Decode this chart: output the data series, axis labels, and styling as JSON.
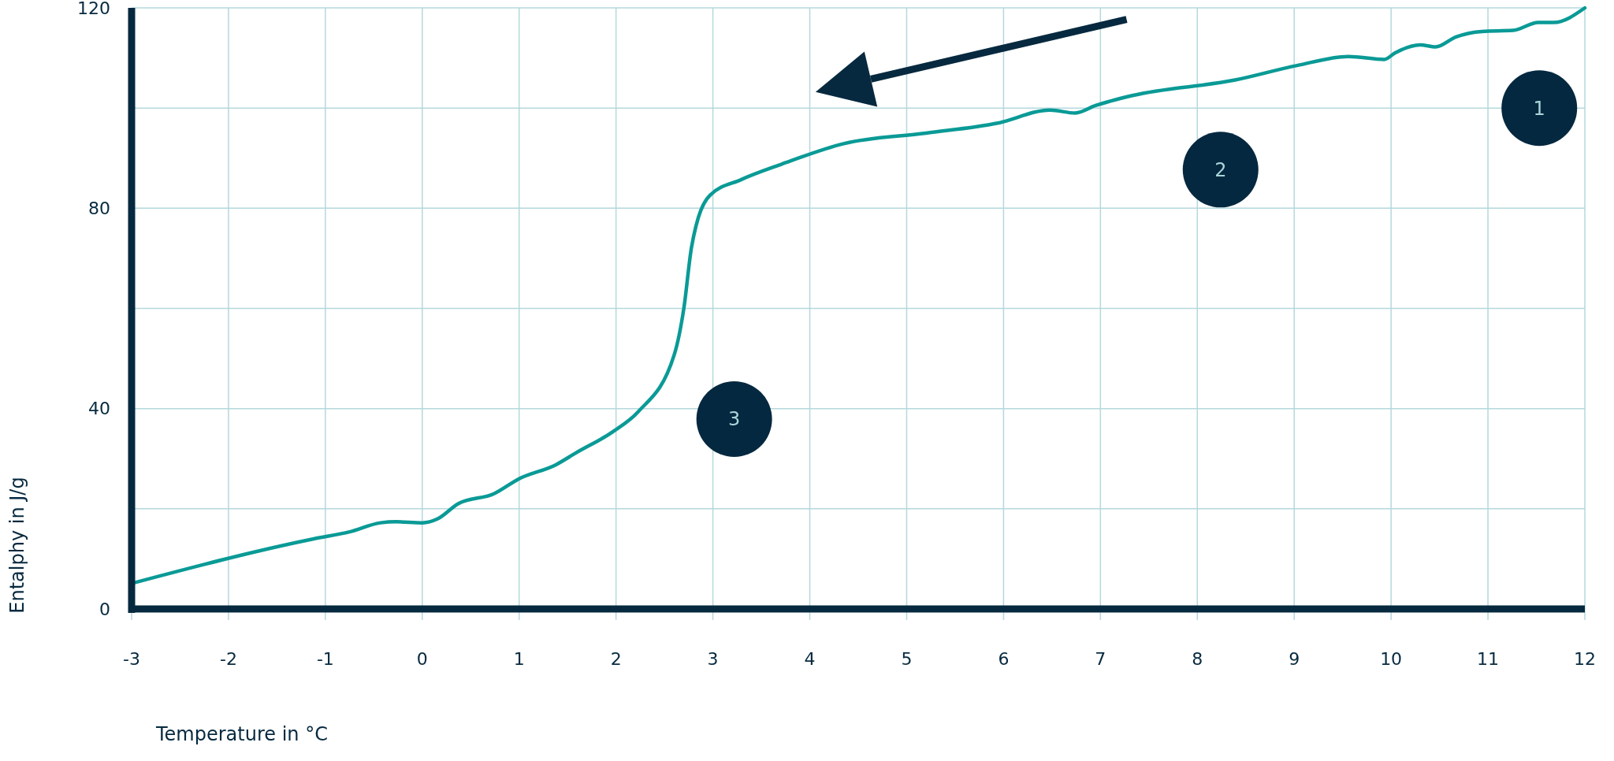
{
  "chart_data": {
    "type": "line",
    "xlabel": "Temperature in °C",
    "ylabel": "Entalphy in J/g",
    "x": [
      -3,
      -1.12,
      -0.75,
      -0.43,
      -0.27,
      0,
      0.16,
      0.37,
      0.74,
      1.0,
      1.38,
      1.59,
      1.96,
      2.23,
      2.6,
      2.7,
      2.78,
      2.97,
      3.29,
      3.71,
      4.35,
      5.2,
      5.94,
      6.48,
      6.74,
      6.95,
      7.33,
      8.39,
      9.03,
      9.56,
      9.93,
      10.04,
      10.3,
      10.46,
      10.67,
      10.94,
      11.26,
      11.52,
      11.68,
      12
    ],
    "series": [
      {
        "color": "#0a9a96",
        "values": [
          5.1,
          14,
          15.4,
          17.2,
          17.4,
          17.2,
          18,
          21,
          23,
          26,
          28.8,
          31.2,
          35.3,
          39.4,
          50.7,
          60,
          72.3,
          82.6,
          85.7,
          88.8,
          92.9,
          95,
          97,
          99.6,
          99,
          100.5,
          102.5,
          105.6,
          108.5,
          110.3,
          109.7,
          111,
          112.6,
          112.2,
          114.2,
          115.3,
          115.5,
          117.1,
          117.1,
          120
        ]
      }
    ],
    "xlim": [
      -3,
      12
    ],
    "xticks": [
      -3,
      -2,
      -1,
      0,
      1,
      2,
      3,
      4,
      5,
      6,
      7,
      8,
      9,
      10,
      11,
      12
    ],
    "ylim": [
      0,
      120
    ],
    "yticks": [
      0,
      {
        "value": 20,
        "label": null
      },
      40,
      {
        "value": 60,
        "label": null
      },
      80,
      {
        "value": 100,
        "label": null
      },
      120
    ],
    "grid": true,
    "line_style": "solid",
    "annotations": [
      "1",
      "2",
      "3"
    ]
  }
}
